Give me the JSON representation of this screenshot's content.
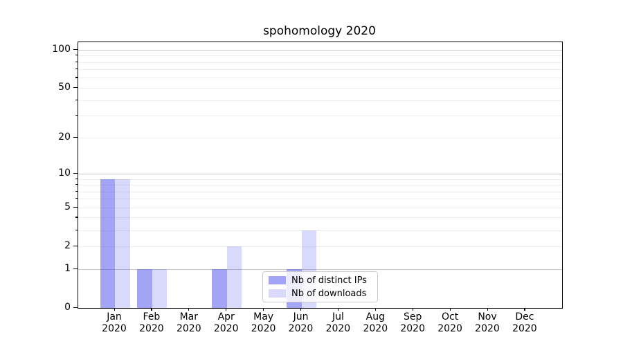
{
  "figure": {
    "title": "spohomology 2020"
  },
  "chart_data": {
    "type": "bar",
    "title": "spohomology 2020",
    "categories": [
      "Jan 2020",
      "Feb 2020",
      "Mar 2020",
      "Apr 2020",
      "May 2020",
      "Jun 2020",
      "Jul 2020",
      "Aug 2020",
      "Sep 2020",
      "Oct 2020",
      "Nov 2020",
      "Dec 2020"
    ],
    "series": [
      {
        "name": "Nb of distinct IPs",
        "color": "rgba(80,80,238,0.52)",
        "values": [
          9,
          1,
          0,
          1,
          0,
          1,
          0,
          0,
          0,
          0,
          0,
          0
        ]
      },
      {
        "name": "Nb of downloads",
        "color": "rgba(80,80,238,0.22)",
        "values": [
          9,
          1,
          0,
          2,
          0,
          3,
          0,
          0,
          0,
          0,
          0,
          0
        ]
      }
    ],
    "yscale": "log1p",
    "ylim": [
      0,
      115
    ],
    "yticks": [
      0,
      1,
      2,
      5,
      10,
      20,
      50,
      100
    ],
    "major_gridlines": [
      1,
      10,
      100
    ],
    "minor_gridlines": [
      2,
      3,
      4,
      5,
      6,
      7,
      8,
      9,
      20,
      30,
      40,
      50,
      60,
      70,
      80,
      90
    ],
    "xlabel": "",
    "ylabel": "",
    "grid": "horizontal",
    "legend_position": "lower center, inside axes"
  }
}
